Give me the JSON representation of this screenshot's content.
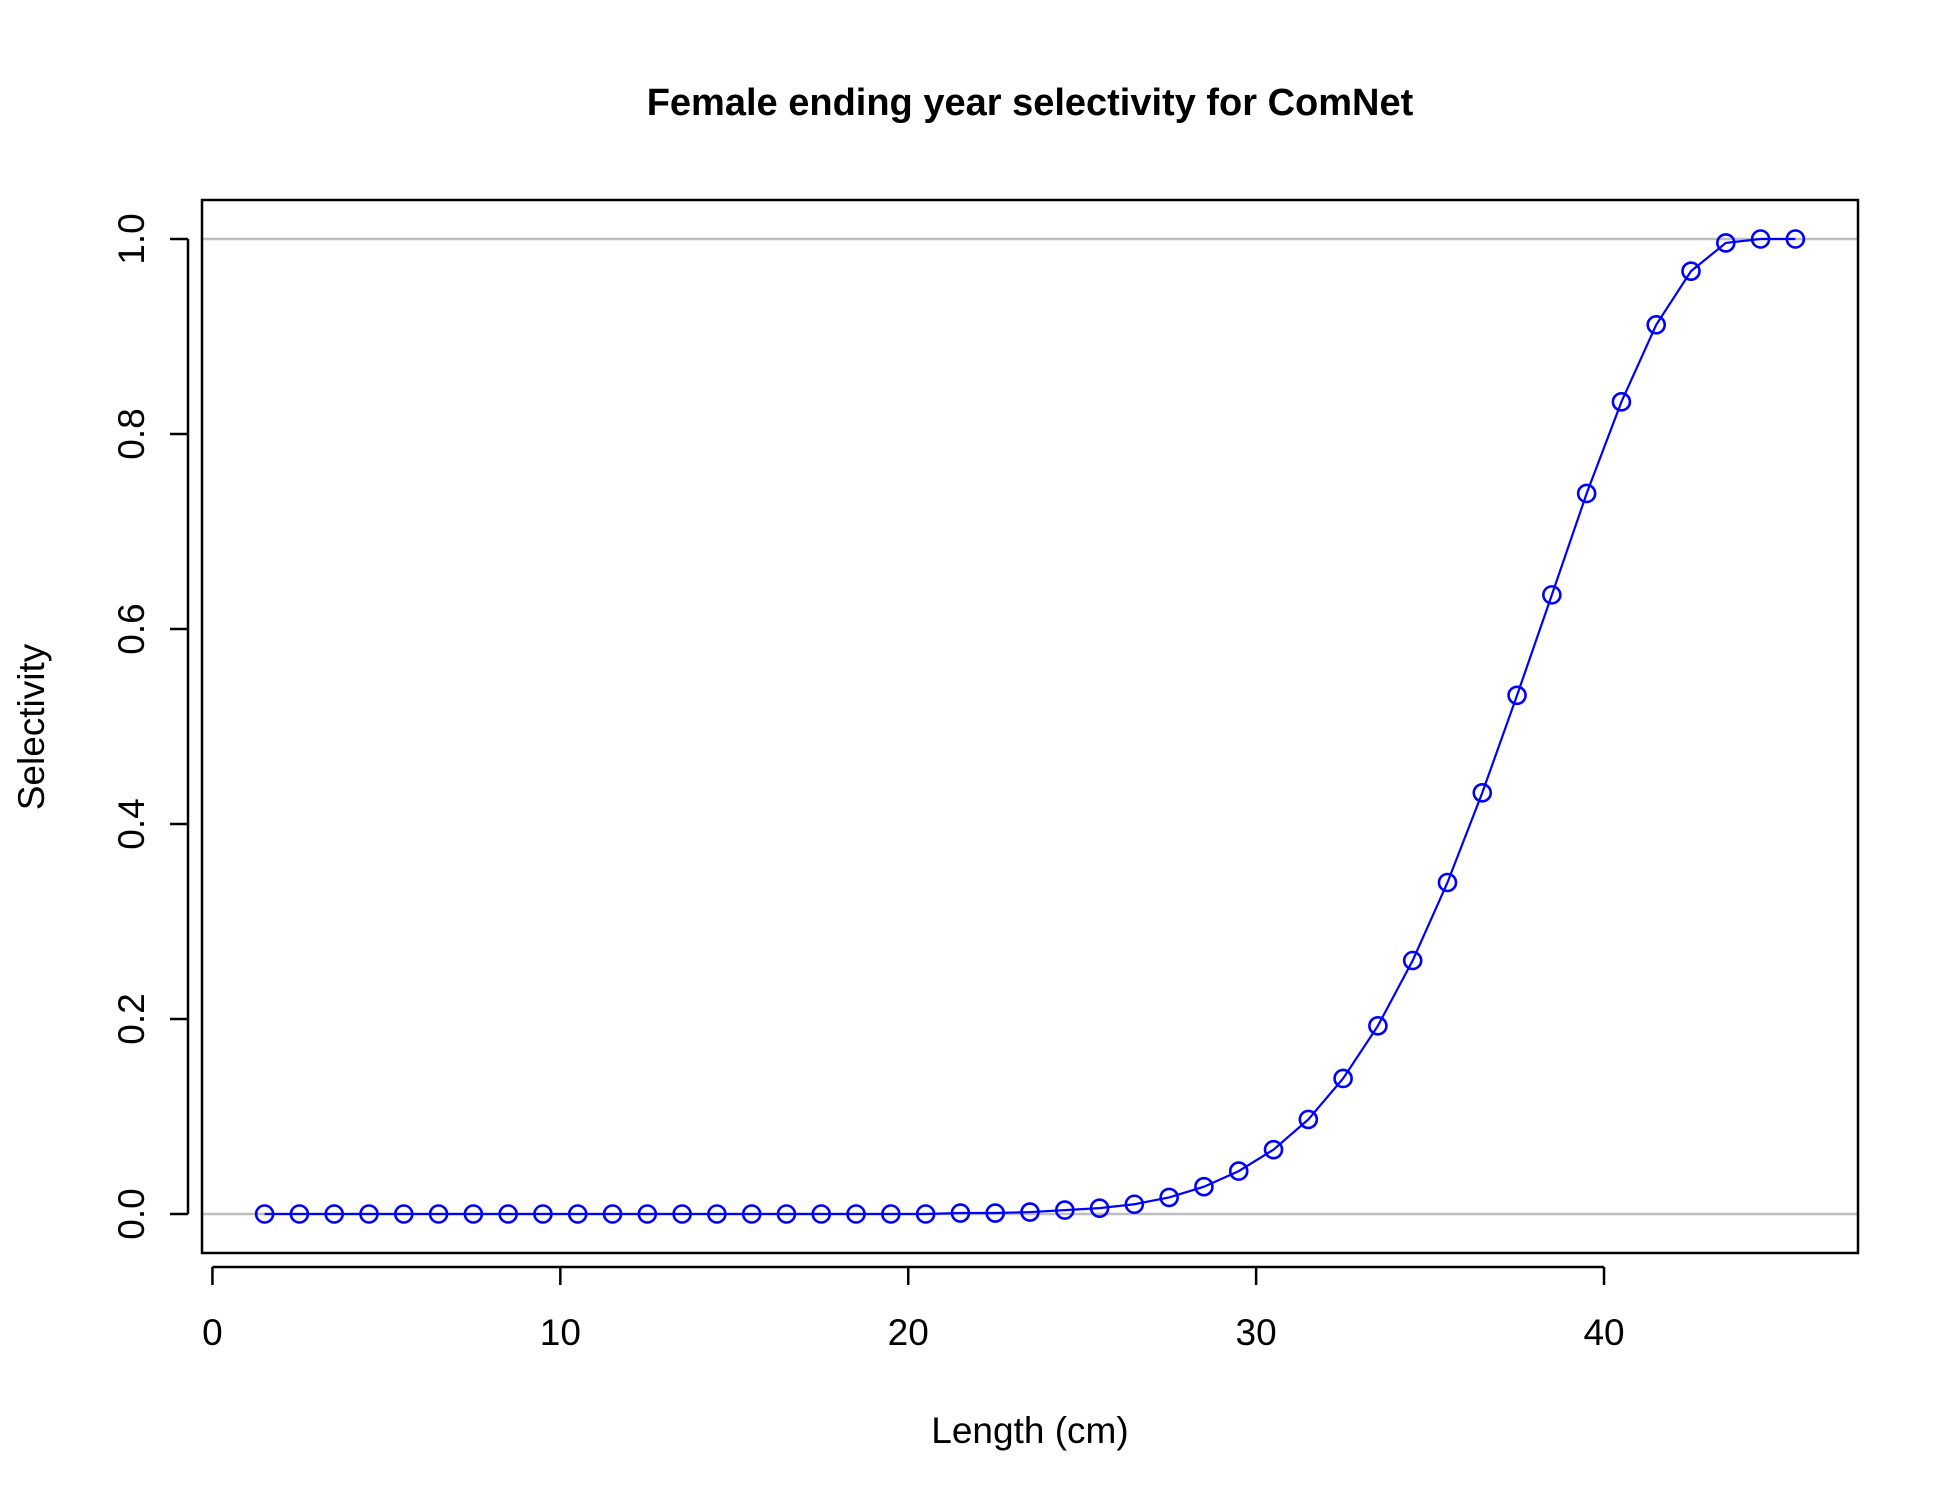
{
  "chart_data": {
    "type": "line",
    "title": "Female ending year selectivity for ComNet",
    "xlabel": "Length (cm)",
    "ylabel": "Selectivity",
    "xlim": [
      -0.3,
      47.3
    ],
    "ylim": [
      -0.04,
      1.04
    ],
    "xticks": [
      0,
      10,
      20,
      30,
      40
    ],
    "yticks": [
      0.0,
      0.2,
      0.4,
      0.6,
      0.8,
      1.0
    ],
    "xtick_labels": [
      "0",
      "10",
      "20",
      "30",
      "40"
    ],
    "ytick_labels": [
      "0.0",
      "0.2",
      "0.4",
      "0.6",
      "0.8",
      "1.0"
    ],
    "reference_lines": [
      0,
      1
    ],
    "reference_line_color": "#bebebe",
    "grid": false,
    "legend": "none",
    "series": [
      {
        "color": "#0000ff",
        "marker": "open-circle",
        "x": [
          1.5,
          2.5,
          3.5,
          4.5,
          5.5,
          6.5,
          7.5,
          8.5,
          9.5,
          10.5,
          11.5,
          12.5,
          13.5,
          14.5,
          15.5,
          16.5,
          17.5,
          18.5,
          19.5,
          20.5,
          21.5,
          22.5,
          23.5,
          24.5,
          25.5,
          26.5,
          27.5,
          28.5,
          29.5,
          30.5,
          31.5,
          32.5,
          33.5,
          34.5,
          35.5,
          36.5,
          37.5,
          38.5,
          39.5,
          40.5,
          41.5,
          42.5,
          43.5,
          44.5,
          45.5
        ],
        "y": [
          0,
          0,
          0,
          0,
          0,
          0,
          0,
          0,
          0,
          0,
          0,
          0,
          0,
          0,
          0,
          0,
          0,
          0,
          0,
          0,
          0.001,
          0.001,
          0.002,
          0.004,
          0.006,
          0.01,
          0.017,
          0.028,
          0.044,
          0.066,
          0.097,
          0.139,
          0.193,
          0.26,
          0.34,
          0.432,
          0.532,
          0.635,
          0.739,
          0.833,
          0.912,
          0.967,
          0.996,
          1.0,
          1.0
        ]
      }
    ]
  }
}
